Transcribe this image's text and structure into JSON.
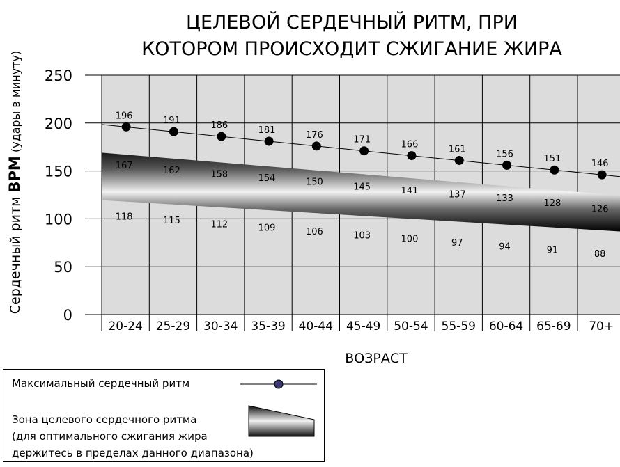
{
  "chart_data": {
    "type": "line",
    "title_lines": [
      "ЦЕЛЕВОЙ СЕРДЕЧНЫЙ РИТМ, ПРИ",
      "КОТОРОМ ПРОИСХОДИТ СЖИГАНИЕ ЖИРА"
    ],
    "xlabel": "ВОЗРАСТ",
    "ylabel": {
      "prefix": "Сердечный ритм ",
      "bold": "BPM",
      "suffix": " (удары в минуту)"
    },
    "ylim": [
      0,
      250
    ],
    "yticks": [
      0,
      50,
      100,
      150,
      200,
      250
    ],
    "categories": [
      "20-24",
      "25-29",
      "30-34",
      "35-39",
      "40-44",
      "45-49",
      "50-54",
      "55-59",
      "60-64",
      "65-69",
      "70+"
    ],
    "grid": true,
    "series": [
      {
        "name": "Максимальный сердечный ритм",
        "values": [
          196,
          191,
          186,
          181,
          176,
          171,
          166,
          161,
          156,
          151,
          146
        ]
      },
      {
        "name": "Зона целевого сердечного ритма (верхняя граница)",
        "values": [
          167,
          162,
          158,
          154,
          150,
          145,
          141,
          137,
          133,
          128,
          126
        ]
      },
      {
        "name": "Зона целевого сердечного ритма (нижняя граница)",
        "values": [
          118,
          115,
          112,
          109,
          106,
          103,
          100,
          97,
          94,
          91,
          88
        ]
      }
    ],
    "legend": {
      "placement": "bottom-left",
      "items": [
        {
          "label": "Максимальный сердечный ритм",
          "icon": "line-with-dot-icon"
        },
        {
          "label_lines": [
            "Зона целевого сердечного ритма",
            "(для оптимального сжигания жира",
            "держитесь в пределах данного диапазона)"
          ],
          "icon": "band-swatch-icon"
        }
      ]
    }
  }
}
